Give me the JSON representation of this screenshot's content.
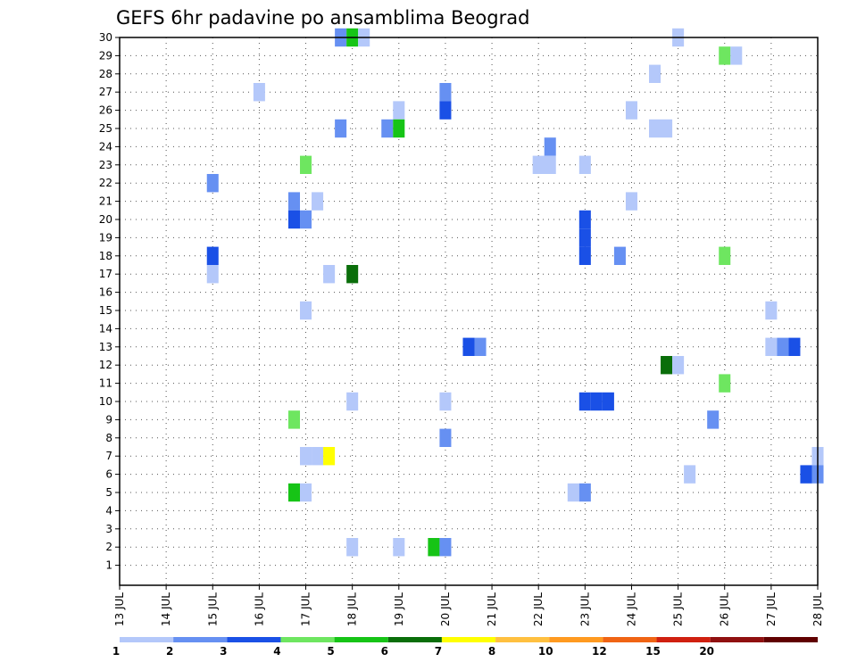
{
  "chart_data": {
    "type": "heatmap",
    "title": "GEFS 6hr padavine po ansamblima Beograd",
    "xlabel": "",
    "ylabel": "",
    "x_range": [
      0,
      15
    ],
    "y_range": [
      0,
      30
    ],
    "grid": true,
    "x_tick_labels": [
      "13 JUL",
      "14 JUL",
      "15 JUL",
      "16 JUL",
      "17 JUL",
      "18 JUL",
      "19 JUL",
      "20 JUL",
      "21 JUL",
      "22 JUL",
      "23 JUL",
      "24 JUL",
      "25 JUL",
      "26 JUL",
      "27 JUL",
      "28 JUL"
    ],
    "y_tick_labels": [
      "1",
      "2",
      "3",
      "4",
      "5",
      "6",
      "7",
      "8",
      "9",
      "10",
      "11",
      "12",
      "13",
      "14",
      "15",
      "16",
      "17",
      "18",
      "19",
      "20",
      "21",
      "22",
      "23",
      "24",
      "25",
      "26",
      "27",
      "28",
      "29",
      "30"
    ],
    "color_scale": {
      "labels": [
        "1",
        "2",
        "3",
        "4",
        "5",
        "6",
        "7",
        "8",
        "10",
        "12",
        "15",
        "20"
      ],
      "colors": [
        "#b4c8fa",
        "#6690f2",
        "#1a50e6",
        "#6ee660",
        "#16c416",
        "#0a6e0a",
        "#ffff00",
        "#ffc040",
        "#ff9a20",
        "#f06414",
        "#d02010",
        "#901010",
        "#600000"
      ]
    },
    "cells": [
      {
        "day": 4.75,
        "member": 30,
        "len": 1,
        "color": "#6690f2"
      },
      {
        "day": 5.0,
        "member": 30,
        "len": 1,
        "color": "#16c416"
      },
      {
        "day": 5.25,
        "member": 30,
        "len": 1,
        "color": "#b4c8fa"
      },
      {
        "day": 12.0,
        "member": 30,
        "len": 1,
        "color": "#b4c8fa"
      },
      {
        "day": 13.0,
        "member": 29,
        "len": 1,
        "color": "#6ee660"
      },
      {
        "day": 13.25,
        "member": 29,
        "len": 1,
        "color": "#b4c8fa"
      },
      {
        "day": 11.5,
        "member": 28,
        "len": 1,
        "color": "#b4c8fa"
      },
      {
        "day": 3.0,
        "member": 27,
        "len": 1,
        "color": "#b4c8fa"
      },
      {
        "day": 7.0,
        "member": 27,
        "len": 1,
        "color": "#6690f2"
      },
      {
        "day": 6.0,
        "member": 26,
        "len": 1,
        "color": "#b4c8fa"
      },
      {
        "day": 7.0,
        "member": 26,
        "len": 1,
        "color": "#1a50e6"
      },
      {
        "day": 11.0,
        "member": 26,
        "len": 1,
        "color": "#b4c8fa"
      },
      {
        "day": 4.75,
        "member": 25,
        "len": 1,
        "color": "#6690f2"
      },
      {
        "day": 5.75,
        "member": 25,
        "len": 1,
        "color": "#6690f2"
      },
      {
        "day": 6.0,
        "member": 25,
        "len": 1,
        "color": "#16c416"
      },
      {
        "day": 11.5,
        "member": 25,
        "len": 2,
        "color": "#b4c8fa"
      },
      {
        "day": 9.25,
        "member": 24,
        "len": 1,
        "color": "#6690f2"
      },
      {
        "day": 4.0,
        "member": 23,
        "len": 1,
        "color": "#6ee660"
      },
      {
        "day": 9.0,
        "member": 23,
        "len": 2,
        "color": "#b4c8fa"
      },
      {
        "day": 10.0,
        "member": 23,
        "len": 1,
        "color": "#b4c8fa"
      },
      {
        "day": 2.0,
        "member": 22,
        "len": 1,
        "color": "#6690f2"
      },
      {
        "day": 3.75,
        "member": 21,
        "len": 1,
        "color": "#6690f2"
      },
      {
        "day": 4.25,
        "member": 21,
        "len": 1,
        "color": "#b4c8fa"
      },
      {
        "day": 11.0,
        "member": 21,
        "len": 1,
        "color": "#b4c8fa"
      },
      {
        "day": 3.75,
        "member": 20,
        "len": 1,
        "color": "#1a50e6"
      },
      {
        "day": 4.0,
        "member": 20,
        "len": 1,
        "color": "#6690f2"
      },
      {
        "day": 10.0,
        "member": 20,
        "len": 1,
        "color": "#1a50e6"
      },
      {
        "day": 10.0,
        "member": 19,
        "len": 1,
        "color": "#1a50e6"
      },
      {
        "day": 10.0,
        "member": 18,
        "len": 1,
        "color": "#1a50e6"
      },
      {
        "day": 2.0,
        "member": 18,
        "len": 1,
        "color": "#1a50e6"
      },
      {
        "day": 10.75,
        "member": 18,
        "len": 1,
        "color": "#6690f2"
      },
      {
        "day": 13.0,
        "member": 18,
        "len": 1,
        "color": "#6ee660"
      },
      {
        "day": 2.0,
        "member": 17,
        "len": 1,
        "color": "#b4c8fa"
      },
      {
        "day": 4.5,
        "member": 17,
        "len": 1,
        "color": "#b4c8fa"
      },
      {
        "day": 5.0,
        "member": 17,
        "len": 1,
        "color": "#0a6e0a"
      },
      {
        "day": 4.0,
        "member": 15,
        "len": 1,
        "color": "#b4c8fa"
      },
      {
        "day": 14.0,
        "member": 15,
        "len": 1,
        "color": "#b4c8fa"
      },
      {
        "day": 7.5,
        "member": 13,
        "len": 1,
        "color": "#1a50e6"
      },
      {
        "day": 7.75,
        "member": 13,
        "len": 1,
        "color": "#6690f2"
      },
      {
        "day": 14.0,
        "member": 13,
        "len": 1,
        "color": "#b4c8fa"
      },
      {
        "day": 14.25,
        "member": 13,
        "len": 1,
        "color": "#6690f2"
      },
      {
        "day": 14.5,
        "member": 13,
        "len": 1,
        "color": "#1a50e6"
      },
      {
        "day": 11.75,
        "member": 12,
        "len": 1,
        "color": "#0a6e0a"
      },
      {
        "day": 12.0,
        "member": 12,
        "len": 1,
        "color": "#b4c8fa"
      },
      {
        "day": 13.0,
        "member": 11,
        "len": 1,
        "color": "#6ee660"
      },
      {
        "day": 5.0,
        "member": 10,
        "len": 1,
        "color": "#b4c8fa"
      },
      {
        "day": 7.0,
        "member": 10,
        "len": 1,
        "color": "#b4c8fa"
      },
      {
        "day": 10.0,
        "member": 10,
        "len": 1,
        "color": "#1a50e6"
      },
      {
        "day": 10.25,
        "member": 10,
        "len": 1,
        "color": "#1a50e6"
      },
      {
        "day": 10.5,
        "member": 10,
        "len": 1,
        "color": "#1a50e6"
      },
      {
        "day": 3.75,
        "member": 9,
        "len": 1,
        "color": "#6ee660"
      },
      {
        "day": 12.75,
        "member": 9,
        "len": 1,
        "color": "#6690f2"
      },
      {
        "day": 7.0,
        "member": 8,
        "len": 1,
        "color": "#6690f2"
      },
      {
        "day": 4.0,
        "member": 7,
        "len": 1,
        "color": "#b4c8fa"
      },
      {
        "day": 4.25,
        "member": 7,
        "len": 1,
        "color": "#b4c8fa"
      },
      {
        "day": 4.5,
        "member": 7,
        "len": 1,
        "color": "#ffff00"
      },
      {
        "day": 15.0,
        "member": 7,
        "len": 1,
        "color": "#b4c8fa"
      },
      {
        "day": 12.25,
        "member": 6,
        "len": 1,
        "color": "#b4c8fa"
      },
      {
        "day": 14.75,
        "member": 6,
        "len": 1,
        "color": "#1a50e6"
      },
      {
        "day": 15.0,
        "member": 6,
        "len": 1,
        "color": "#6690f2"
      },
      {
        "day": 3.75,
        "member": 5,
        "len": 1,
        "color": "#16c416"
      },
      {
        "day": 4.0,
        "member": 5,
        "len": 1,
        "color": "#b4c8fa"
      },
      {
        "day": 9.75,
        "member": 5,
        "len": 1,
        "color": "#b4c8fa"
      },
      {
        "day": 10.0,
        "member": 5,
        "len": 1,
        "color": "#6690f2"
      },
      {
        "day": 5.0,
        "member": 2,
        "len": 1,
        "color": "#b4c8fa"
      },
      {
        "day": 6.0,
        "member": 2,
        "len": 1,
        "color": "#b4c8fa"
      },
      {
        "day": 6.75,
        "member": 2,
        "len": 1,
        "color": "#16c416"
      },
      {
        "day": 7.0,
        "member": 2,
        "len": 1,
        "color": "#6690f2"
      }
    ]
  }
}
